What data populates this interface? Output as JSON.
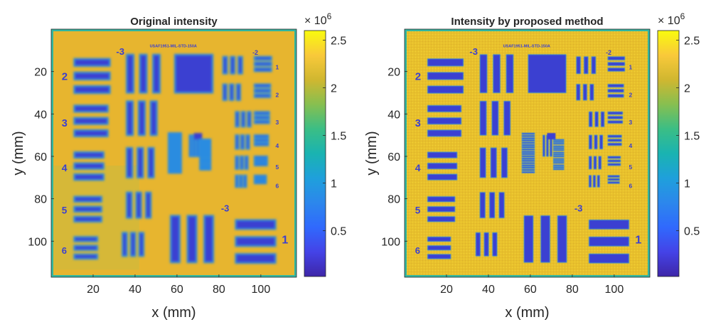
{
  "chart_data": [
    {
      "type": "heatmap",
      "title": "Original intensity",
      "xlabel": "x (mm)",
      "ylabel": "y (mm)",
      "xlim": [
        0,
        117
      ],
      "ylim": [
        117,
        0
      ],
      "xticks": [
        20,
        40,
        60,
        80,
        100
      ],
      "yticks": [
        20,
        40,
        60,
        80,
        100
      ],
      "colorbar": {
        "colormap": "parula",
        "multiplier": "×10^6",
        "multiplier_base": "× 10",
        "multiplier_exp": "6",
        "range": [
          0.02,
          2.6
        ],
        "ticks": [
          "0.5",
          "1",
          "1.5",
          "2",
          "2.5"
        ],
        "tick_values": [
          0.5,
          1,
          1.5,
          2,
          2.5
        ]
      },
      "image": "USAF 1951 resolution target, blurred reconstruction",
      "background_level": 2.2,
      "bar_level": 0.25
    },
    {
      "type": "heatmap",
      "title": "Intensity by proposed method",
      "xlabel": "x (mm)",
      "ylabel": "y (mm)",
      "xlim": [
        0,
        117
      ],
      "ylim": [
        117,
        0
      ],
      "xticks": [
        20,
        40,
        60,
        80,
        100
      ],
      "yticks": [
        20,
        40,
        60,
        80,
        100
      ],
      "colorbar": {
        "colormap": "parula",
        "multiplier": "×10^6",
        "multiplier_base": "× 10",
        "multiplier_exp": "6",
        "range": [
          0.02,
          2.6
        ],
        "ticks": [
          "0.5",
          "1",
          "1.5",
          "2",
          "2.5"
        ],
        "tick_values": [
          0.5,
          1,
          1.5,
          2,
          2.5
        ]
      },
      "image": "USAF 1951 resolution target, sharp reconstruction",
      "background_level": 2.3,
      "bar_level": 0.2
    }
  ],
  "target": {
    "banner": "USAF1951-MIL-STD-150A",
    "group_top": "-3",
    "group_right": "-2",
    "group_bottom": "-3",
    "element_big": "1",
    "elements_left": [
      "2",
      "3",
      "4",
      "5",
      "6"
    ],
    "elements_right": [
      "1",
      "2",
      "3",
      "4",
      "5",
      "6"
    ]
  },
  "colors": {
    "background_yellow": "#e7b52f",
    "background_green": "#b7be4a",
    "edge_cyan": "#33b7a0",
    "bar_blue": "#3a3fd1",
    "bar_halo": "#2b8ce0",
    "colorbar_low": "#3e26a8",
    "colorbar_high": "#f9fb0e"
  }
}
